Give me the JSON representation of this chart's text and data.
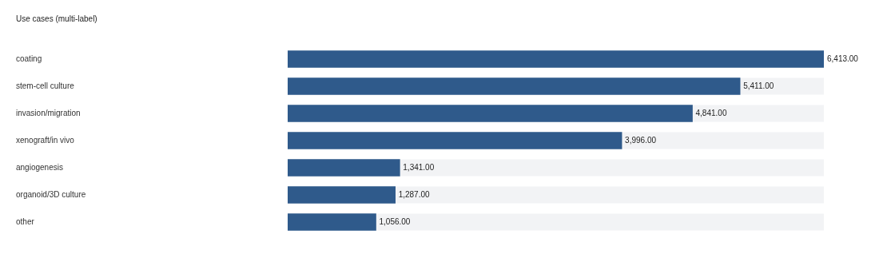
{
  "chart_data": {
    "type": "bar",
    "orientation": "horizontal",
    "title": "Use cases (multi-label)",
    "categories": [
      "coating",
      "stem-cell culture",
      "invasion/migration",
      "xenograft/in vivo",
      "angiogenesis",
      "organoid/3D culture",
      "other"
    ],
    "values": [
      6413,
      5411,
      4841,
      3996,
      1341,
      1287,
      1056
    ],
    "value_labels": [
      "6,413.00",
      "5,411.00",
      "4,841.00",
      "3,996.00",
      "1,341.00",
      "1,287.00",
      "1,056.00"
    ],
    "color": "#2f5a8b"
  }
}
